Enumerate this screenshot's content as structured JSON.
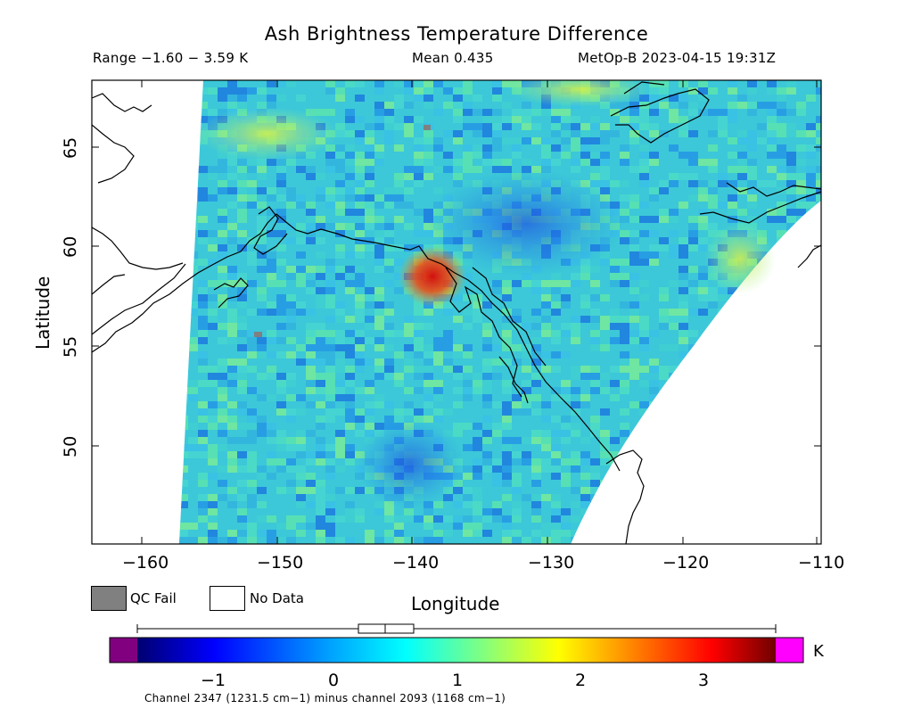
{
  "header": {
    "title": "Ash Brightness Temperature Difference",
    "range": "Range −1.60 − 3.59 K",
    "mean": "Mean 0.435",
    "satellite_time": "MetOp-B 2023-04-15 19:31Z"
  },
  "axes": {
    "x_label": "Longitude",
    "y_label": "Latitude",
    "x_ticks": [
      "−160",
      "−150",
      "−140",
      "−130",
      "−120",
      "−110"
    ],
    "y_ticks": [
      "65",
      "60",
      "55",
      "50"
    ]
  },
  "legend": {
    "qc_fail": "QC Fail",
    "no_data": "No Data",
    "qc_fail_color": "#808080",
    "no_data_color": "#ffffff"
  },
  "colorbar": {
    "unit": "K",
    "ticks": [
      "−1",
      "0",
      "1",
      "2",
      "3"
    ],
    "under_color": "#800080",
    "over_color": "#ff00ff",
    "colormap": [
      "#000080",
      "#0000ff",
      "#00a0ff",
      "#00ffff",
      "#80ff80",
      "#ffff00",
      "#ff8000",
      "#ff0000",
      "#800000"
    ]
  },
  "footnote": "Channel 2347 (1231.5 cm−1) minus channel 2093 (1168 cm−1)",
  "map": {
    "background_field_color": "#3cc8d8",
    "coastline_color": "#000000",
    "hotspot_color": "#d01010"
  }
}
